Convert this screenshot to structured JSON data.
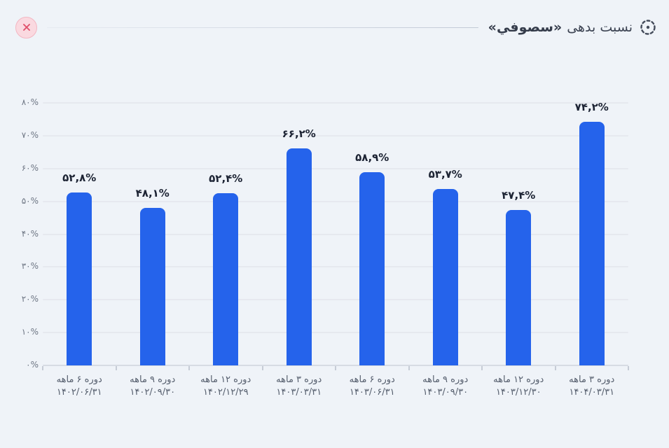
{
  "header": {
    "title_prefix": "نسبت بدهی",
    "ticker": "«سصوفي»",
    "target_icon": "dashed-circle-target-icon",
    "close_icon": "close-icon"
  },
  "colors": {
    "background": "#eff3f8",
    "bar": "#2563eb",
    "gridline": "#e6e9ef",
    "baseline": "#d6dbe3",
    "title_text": "#3d4453",
    "axis_text": "#6e7684",
    "value_label_text": "#1d2434",
    "close_x": "#e0516b",
    "close_bg": "#fad9e0",
    "close_border": "#f3b6c2"
  },
  "chart_data": {
    "type": "bar",
    "title": "نسبت بدهی «سصوفي»",
    "categories": [
      {
        "period": "دوره ۶ ماهه",
        "date": "۱۴۰۲/۰۶/۳۱"
      },
      {
        "period": "دوره ۹ ماهه",
        "date": "۱۴۰۲/۰۹/۳۰"
      },
      {
        "period": "دوره ۱۲ ماهه",
        "date": "۱۴۰۲/۱۲/۲۹"
      },
      {
        "period": "دوره ۳ ماهه",
        "date": "۱۴۰۳/۰۳/۳۱"
      },
      {
        "period": "دوره ۶ ماهه",
        "date": "۱۴۰۳/۰۶/۳۱"
      },
      {
        "period": "دوره ۹ ماهه",
        "date": "۱۴۰۳/۰۹/۳۰"
      },
      {
        "period": "دوره ۱۲ ماهه",
        "date": "۱۴۰۳/۱۲/۳۰"
      },
      {
        "period": "دوره ۳ ماهه",
        "date": "۱۴۰۴/۰۳/۳۱"
      }
    ],
    "values": [
      52.8,
      48.1,
      52.4,
      66.2,
      58.9,
      53.7,
      47.4,
      74.2
    ],
    "value_labels": [
      "۵۲,۸%",
      "۴۸,۱%",
      "۵۲,۴%",
      "۶۶,۲%",
      "۵۸,۹%",
      "۵۳,۷%",
      "۴۷,۴%",
      "۷۴,۲%"
    ],
    "xlabel": "",
    "ylabel": "",
    "ylim": [
      0,
      80
    ],
    "yticks": [
      0,
      10,
      20,
      30,
      40,
      50,
      60,
      70,
      80
    ],
    "ytick_labels": [
      "۰%",
      "۱۰%",
      "۲۰%",
      "۳۰%",
      "۴۰%",
      "۵۰%",
      "۶۰%",
      "۷۰%",
      "۸۰%"
    ],
    "grid": true,
    "legend": "none",
    "bar_color": "#2563eb"
  }
}
